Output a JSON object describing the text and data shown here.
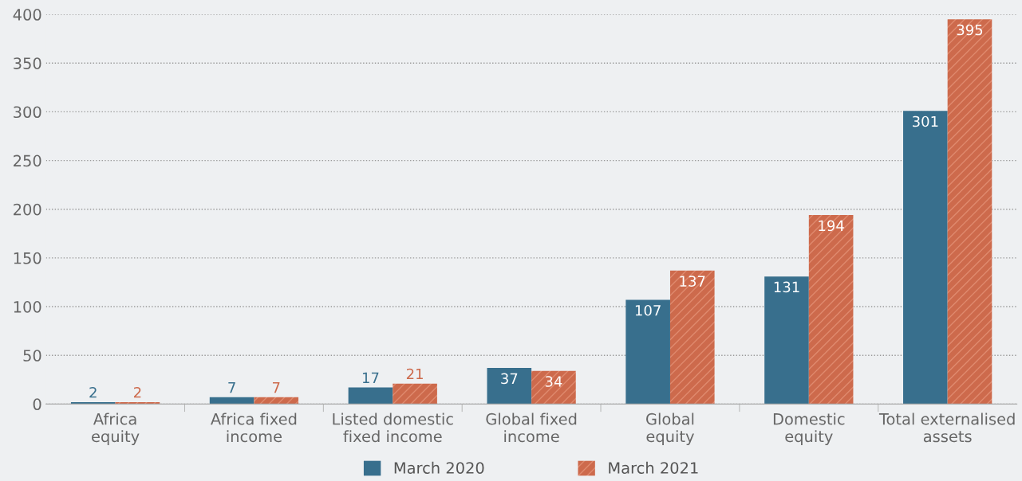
{
  "chart_data": {
    "type": "bar",
    "categories": [
      "Africa\nequity",
      "Africa fixed\nincome",
      "Listed domestic\nfixed income",
      "Global fixed\nincome",
      "Global\nequity",
      "Domestic\nequity",
      "Total externalised\nassets"
    ],
    "series": [
      {
        "name": "March 2020",
        "color": "#386f8d",
        "values": [
          2,
          7,
          17,
          37,
          107,
          131,
          301
        ]
      },
      {
        "name": "March 2021",
        "color": "#cd6a4c",
        "values": [
          2,
          7,
          21,
          34,
          137,
          194,
          395
        ]
      }
    ],
    "ylim": [
      0,
      400
    ],
    "yticks": [
      0,
      50,
      100,
      150,
      200,
      250,
      300,
      350,
      400
    ],
    "grid": "y",
    "legend": "bottom",
    "data_labels": true
  }
}
